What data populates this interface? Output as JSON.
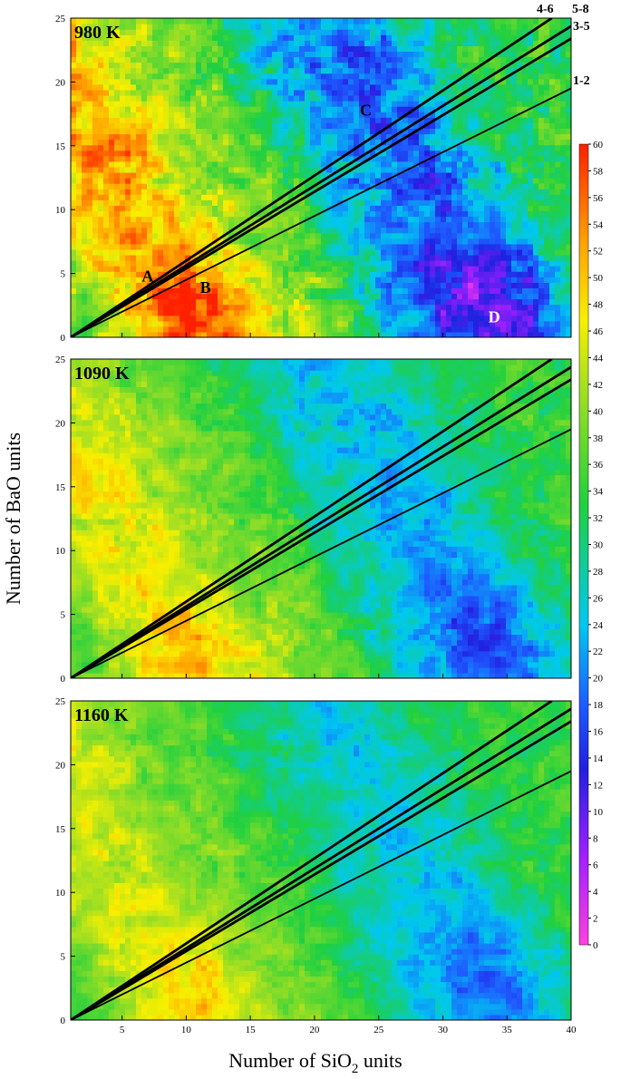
{
  "chart_data": {
    "type": "heatmap",
    "xlabel_text": "Number of SiO",
    "xlabel_sub": "2",
    "xlabel_tail": " units",
    "ylabel": "Number of BaO units",
    "xlim": [
      1,
      40
    ],
    "ylim": [
      0,
      25
    ],
    "x_ticks": [
      5,
      10,
      15,
      20,
      25,
      30,
      35,
      40
    ],
    "y_ticks": [
      0,
      5,
      10,
      15,
      20,
      25
    ],
    "colorbar": {
      "range": [
        0,
        60
      ],
      "ticks": [
        0,
        2,
        4,
        6,
        8,
        10,
        12,
        14,
        16,
        18,
        20,
        22,
        24,
        26,
        28,
        30,
        32,
        34,
        36,
        38,
        40,
        42,
        44,
        46,
        48,
        50,
        52,
        54,
        56,
        58,
        60
      ],
      "colors": [
        "#ff40e0",
        "#a020ff",
        "#2020e0",
        "#1e5cff",
        "#00c8f0",
        "#20d040",
        "#a8e020",
        "#f8f000",
        "#ffa000",
        "#ff2000"
      ]
    },
    "lines": [
      {
        "label": "1-2",
        "slope": 0.5
      },
      {
        "label": "3-5",
        "slope": 0.6
      },
      {
        "label": "4-6",
        "slope": 0.6667
      },
      {
        "label": "5-8",
        "slope": 0.625
      }
    ],
    "point_labels": [
      {
        "text": "A",
        "x": 7,
        "y": 4.8,
        "color": "#000000"
      },
      {
        "text": "B",
        "x": 11.5,
        "y": 3.9,
        "color": "#000000"
      },
      {
        "text": "C",
        "x": 24,
        "y": 17.8,
        "color": "#000000"
      },
      {
        "text": "D",
        "x": 34,
        "y": 1.6,
        "color": "#ffffff"
      }
    ],
    "panels": [
      {
        "label": "980 K",
        "contrast": 1.0
      },
      {
        "label": "1090 K",
        "contrast": 0.68
      },
      {
        "label": "1160 K",
        "contrast": 0.6
      }
    ]
  }
}
